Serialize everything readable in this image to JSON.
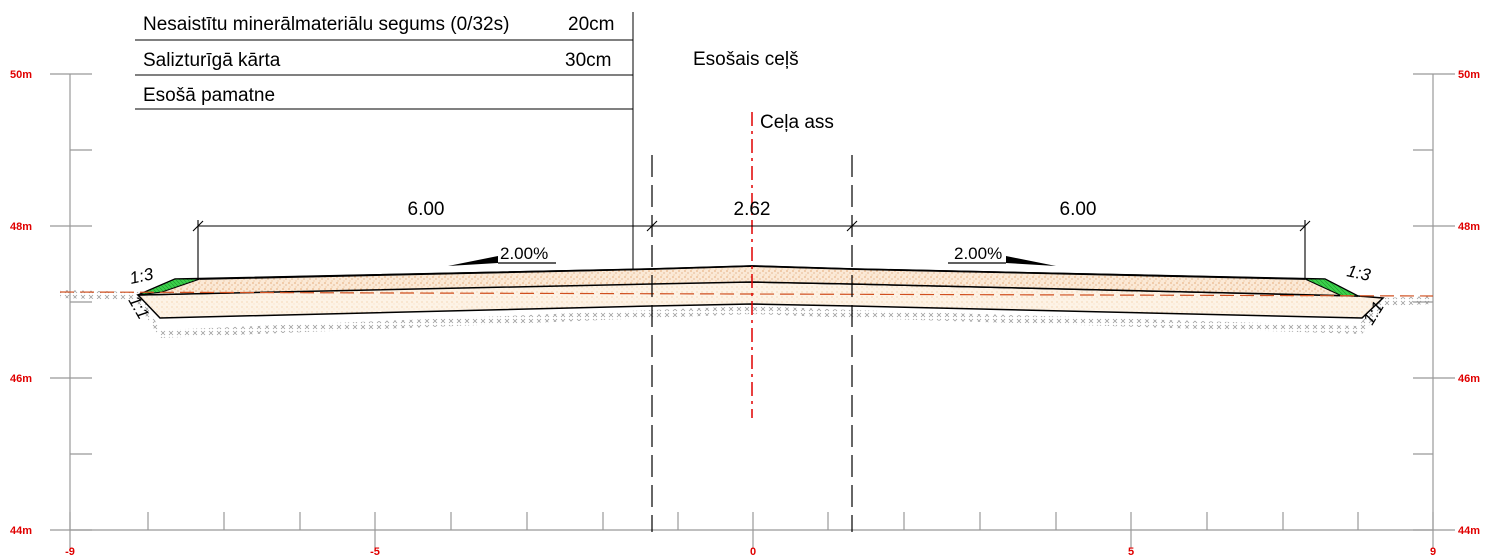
{
  "legend": {
    "rows": [
      {
        "name": "Nesaistītu minerālmateriālu segums (0/32s)",
        "thickness": "20cm"
      },
      {
        "name": "Salizturīgā kārta",
        "thickness": "30cm"
      },
      {
        "name": "Esošā pamatne",
        "thickness": ""
      }
    ]
  },
  "labels": {
    "existing_road": "Esošais ceļš",
    "axis": "Ceļa ass"
  },
  "dimensions": {
    "left_width": "6.00",
    "middle_width": "2.62",
    "right_width": "6.00"
  },
  "slopes": {
    "left_grade": "2.00%",
    "right_grade": "2.00%",
    "left_fill_slope": "1:3",
    "right_fill_slope": "1:3",
    "left_cut_slope": "1:1",
    "right_cut_slope": "1:1"
  },
  "elevation_axis": {
    "left_labels": [
      "50m",
      "48m",
      "46m",
      "44m"
    ],
    "right_labels": [
      "50m",
      "48m",
      "46m",
      "44m"
    ]
  },
  "offset_axis": {
    "labels": [
      "-9",
      "-5",
      "0",
      "5",
      "9"
    ]
  },
  "colors": {
    "label_red": "#e00000",
    "axis_line_red": "#e00000",
    "ground_line": "#d05020",
    "fill_green": "#2ecc40",
    "sand": "#e8b070"
  }
}
